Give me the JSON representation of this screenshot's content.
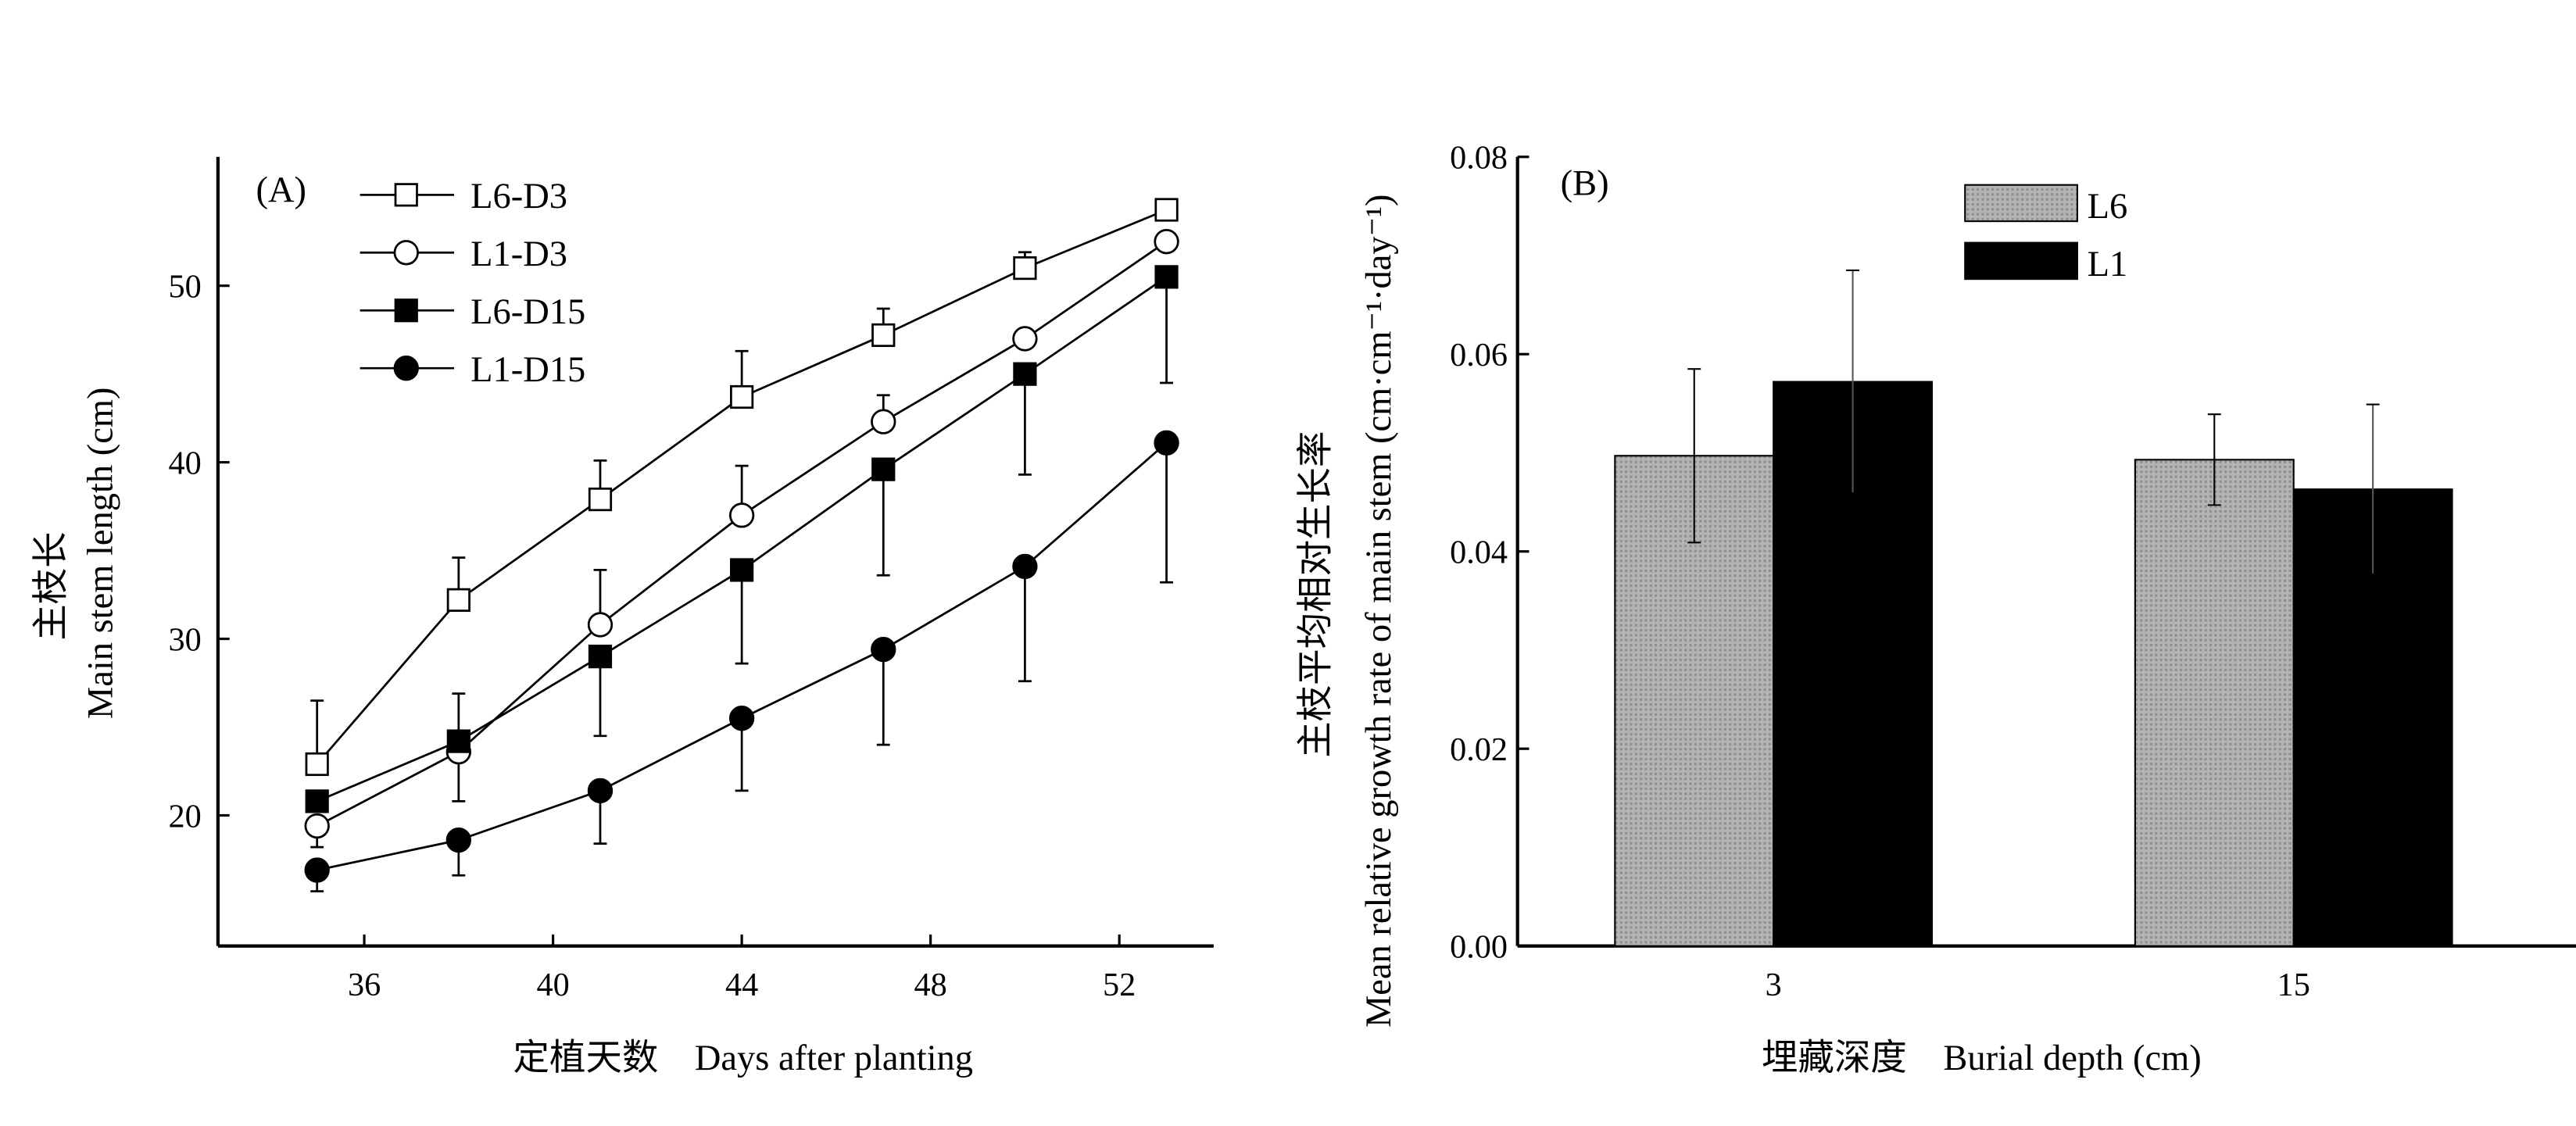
{
  "chart_data": [
    {
      "type": "line",
      "panel_label": "(A)",
      "xlabel": "定植天数    Days after planting",
      "ylabel_cn": "主枝长",
      "ylabel_en": "Main stem length (cm)",
      "xlim": [
        32.9,
        54
      ],
      "ylim": [
        12.6,
        57.3
      ],
      "xticks": [
        36,
        40,
        44,
        48,
        52
      ],
      "yticks": [
        20,
        30,
        40,
        50
      ],
      "x": [
        35,
        38,
        41,
        44,
        47,
        50,
        53
      ],
      "legend_position": "top-left",
      "series": [
        {
          "name": "L6-D3",
          "marker": "square-open",
          "values": [
            22.9,
            32.2,
            37.9,
            43.7,
            47.2,
            51.0,
            54.3
          ],
          "err": [
            3.6,
            2.4,
            2.2,
            2.6,
            1.5,
            0.9,
            0.5
          ],
          "err_dir": "up"
        },
        {
          "name": "L1-D3",
          "marker": "circle-open",
          "values": [
            19.4,
            23.6,
            30.8,
            37.0,
            42.3,
            47.0,
            52.5
          ],
          "err": [
            1.2,
            2.8,
            3.1,
            2.8,
            1.5,
            0.3,
            0.3
          ],
          "err_dir": "mixed"
        },
        {
          "name": "L6-D15",
          "marker": "square-filled",
          "values": [
            20.8,
            24.2,
            29.0,
            33.9,
            39.6,
            45.0,
            50.5
          ],
          "err": [
            0.5,
            2.7,
            4.5,
            5.3,
            6.0,
            5.7,
            6.0
          ],
          "err_dir": "mixed"
        },
        {
          "name": "L1-D15",
          "marker": "circle-filled",
          "values": [
            16.9,
            18.6,
            21.4,
            25.5,
            29.4,
            34.1,
            41.1
          ],
          "err": [
            1.2,
            2.0,
            3.0,
            4.1,
            5.4,
            6.5,
            7.9
          ],
          "err_dir": "down"
        }
      ]
    },
    {
      "type": "bar",
      "panel_label": "(B)",
      "xlabel": "埋藏深度    Burial depth (cm)",
      "ylabel": "Mean relative growth rate of main stem (cm·cm⁻¹·day⁻¹)",
      "ylabel_cn": "主枝平均相对生长率",
      "categories": [
        "3",
        "15"
      ],
      "ylim": [
        0,
        0.08
      ],
      "yticks": [
        "0.00",
        "0.02",
        "0.04",
        "0.06",
        "0.08"
      ],
      "legend_position": "top-center",
      "series": [
        {
          "name": "L6",
          "color": "#a8a8a8",
          "values": [
            0.0497,
            0.0493
          ],
          "err": [
            0.0088,
            0.0046
          ]
        },
        {
          "name": "L1",
          "color": "#000000",
          "values": [
            0.0572,
            0.0463
          ],
          "err": [
            0.0113,
            0.0086
          ]
        }
      ]
    }
  ]
}
